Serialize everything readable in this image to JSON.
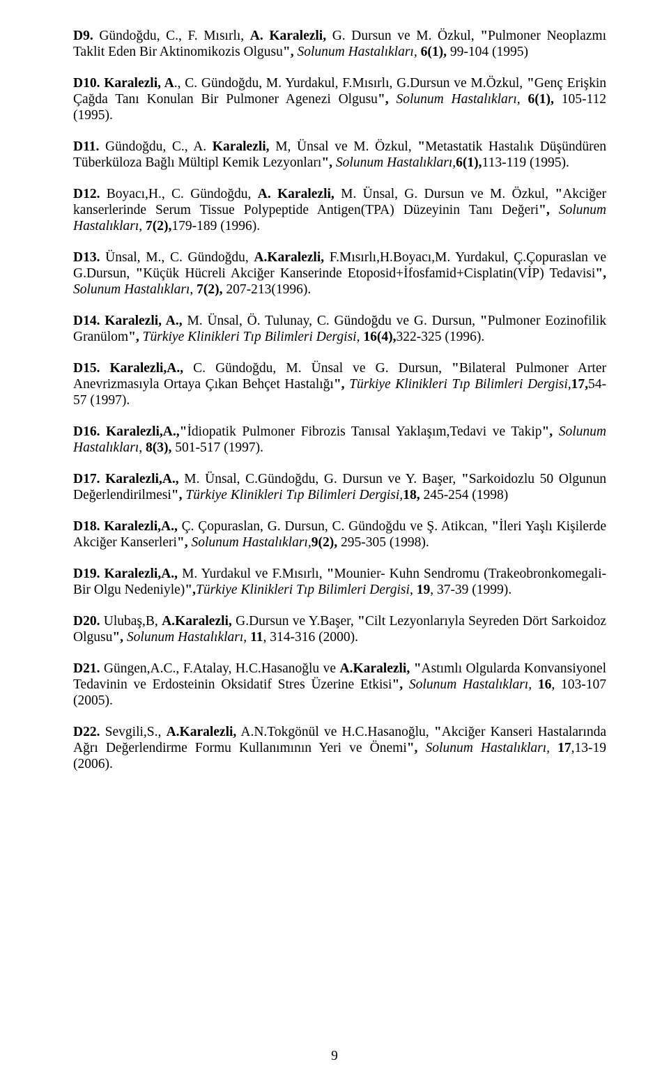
{
  "pageNumber": "9",
  "entries": [
    {
      "parts": [
        {
          "t": "D9.",
          "b": true
        },
        {
          "t": " Gündoğdu, C., F. Mısırlı, "
        },
        {
          "t": "A. Karalezli,",
          "b": true
        },
        {
          "t": " G. Dursun ve M. Özkul, "
        },
        {
          "t": "\"",
          "b": true
        },
        {
          "t": "Pulmoner Neoplazmı Taklit Eden Bir Aktinomikozis Olgusu"
        },
        {
          "t": "\",",
          "b": true
        },
        {
          "t": " "
        },
        {
          "t": "Solunum Hastalıkları,",
          "i": true
        },
        {
          "t": " "
        },
        {
          "t": "6(1),",
          "b": true
        },
        {
          "t": " 99-104 (1995)"
        }
      ]
    },
    {
      "parts": [
        {
          "t": "D10.",
          "b": true
        },
        {
          "t": " "
        },
        {
          "t": "Karalezli, A",
          "b": true
        },
        {
          "t": "., C. Gündoğdu, M. Yurdakul, F.Mısırlı, G.Dursun ve M.Özkul, "
        },
        {
          "t": "\"",
          "b": true
        },
        {
          "t": "Genç Erişkin Çağda Tanı Konulan Bir Pulmoner Agenezi Olgusu"
        },
        {
          "t": "\",",
          "b": true
        },
        {
          "t": " "
        },
        {
          "t": "Solunum Hastalıkları,",
          "i": true
        },
        {
          "t": " "
        },
        {
          "t": "6(1),",
          "b": true
        },
        {
          "t": " 105-112 (1995)."
        }
      ]
    },
    {
      "parts": [
        {
          "t": "D11.",
          "b": true
        },
        {
          "t": " Gündoğdu, C., A. "
        },
        {
          "t": "Karalezli,",
          "b": true
        },
        {
          "t": " M, Ünsal ve M. Özkul, "
        },
        {
          "t": "  \"",
          "b": true
        },
        {
          "t": "Metastatik Hastalık Düşündüren Tüberküloza Bağlı Mültipl Kemik Lezyonları"
        },
        {
          "t": "\",",
          "b": true
        },
        {
          "t": " "
        },
        {
          "t": "Solunum Hastalıkları,",
          "i": true
        },
        {
          "t": "6(1),",
          "b": true
        },
        {
          "t": "113-119 (1995)."
        }
      ]
    },
    {
      "parts": [
        {
          "t": "D12.",
          "b": true
        },
        {
          "t": " Boyacı,H., C. Gündoğdu, "
        },
        {
          "t": "A. Karalezli,",
          "b": true
        },
        {
          "t": " M. Ünsal, G. Dursun ve M. Özkul, "
        },
        {
          "t": "\"",
          "b": true
        },
        {
          "t": "Akciğer kanserlerinde Serum Tissue Polypeptide Antigen(TPA) Düzeyinin Tanı Değeri"
        },
        {
          "t": "\",",
          "b": true
        },
        {
          "t": " "
        },
        {
          "t": " Solunum Hastalıkları,",
          "i": true
        },
        {
          "t": " "
        },
        {
          "t": "7(2),",
          "b": true
        },
        {
          "t": "179-189 (1996)."
        }
      ]
    },
    {
      "parts": [
        {
          "t": "D13.",
          "b": true
        },
        {
          "t": " Ünsal, M., C. Gündoğdu, "
        },
        {
          "t": "A.Karalezli,",
          "b": true
        },
        {
          "t": " F.Mısırlı,H.Boyacı,M. Yurdakul, Ç.Çopuraslan ve G.Dursun, "
        },
        {
          "t": "\"",
          "b": true
        },
        {
          "t": "Küçük Hücreli Akciğer Kanserinde Etoposid+İfosfamid+Cisplatin(VİP) Tedavisi"
        },
        {
          "t": "\",",
          "b": true
        },
        {
          "t": " "
        },
        {
          "t": "Solunum Hastalıkları",
          "i": true
        },
        {
          "t": ", "
        },
        {
          "t": "7(2),",
          "b": true
        },
        {
          "t": " 207-213(1996)."
        }
      ]
    },
    {
      "parts": [
        {
          "t": "D14. Karalezli, A.,",
          "b": true
        },
        {
          "t": " M. Ünsal, Ö. Tulunay, C. Gündoğdu ve G. Dursun, "
        },
        {
          "t": "\"",
          "b": true
        },
        {
          "t": "Pulmoner Eozinofilik Granülom"
        },
        {
          "t": "\",",
          "b": true
        },
        {
          "t": " "
        },
        {
          "t": "Türkiye Klinikleri Tıp Bilimleri Dergisi,",
          "i": true
        },
        {
          "t": " "
        },
        {
          "t": "16(4),",
          "b": true
        },
        {
          "t": "322-325 (1996)."
        }
      ]
    },
    {
      "parts": [
        {
          "t": "D15. Karalezli,A.,",
          "b": true
        },
        {
          "t": " C. Gündoğdu, M. Ünsal ve G. Dursun, "
        },
        {
          "t": "\"",
          "b": true
        },
        {
          "t": "Bilateral Pulmoner Arter Anevrizmasıyla Ortaya Çıkan Behçet Hastalığı"
        },
        {
          "t": "\",",
          "b": true
        },
        {
          "t": " "
        },
        {
          "t": "Türkiye Klinikleri Tıp Bilimleri Dergisi,",
          "i": true
        },
        {
          "t": "17,",
          "b": true
        },
        {
          "t": "54-57 (1997)."
        }
      ]
    },
    {
      "parts": [
        {
          "t": "D16. Karalezli,A.,\"",
          "b": true
        },
        {
          "t": "İdiopatik Pulmoner Fibrozis Tanısal Yaklaşım,Tedavi ve Takip"
        },
        {
          "t": "\",",
          "b": true
        },
        {
          "t": " "
        },
        {
          "t": "Solunum Hastalıkları,",
          "i": true
        },
        {
          "t": " "
        },
        {
          "t": "8(3),",
          "b": true
        },
        {
          "t": " 501-517 (1997)."
        }
      ]
    },
    {
      "parts": [
        {
          "t": "D17. Karalezli,A.,",
          "b": true
        },
        {
          "t": " M. Ünsal, C.Gündoğdu, G. Dursun ve Y. Başer, "
        },
        {
          "t": "\"",
          "b": true
        },
        {
          "t": "Sarkoidozlu 50 Olgunun Değerlendirilmesi"
        },
        {
          "t": "\",",
          "b": true
        },
        {
          "t": " "
        },
        {
          "t": "Türkiye Klinikleri Tıp Bilimleri Dergisi,",
          "i": true
        },
        {
          "t": "18,",
          "b": true
        },
        {
          "t": " 245-254 (1998)"
        }
      ]
    },
    {
      "parts": [
        {
          "t": "D18. Karalezli,A.,",
          "b": true
        },
        {
          "t": " Ç. Çopuraslan, G. Dursun, C. Gündoğdu ve Ş. Atikcan, "
        },
        {
          "t": "\"",
          "b": true
        },
        {
          "t": "İleri Yaşlı Kişilerde Akciğer Kanserleri"
        },
        {
          "t": "\",",
          "b": true
        },
        {
          "t": " "
        },
        {
          "t": "Solunum Hastalıkları,",
          "i": true
        },
        {
          "t": "9(2),",
          "b": true
        },
        {
          "t": " 295-305 (1998)."
        }
      ]
    },
    {
      "parts": [
        {
          "t": "D19. Karalezli,A.,",
          "b": true
        },
        {
          "t": " M. Yurdakul ve F.Mısırlı, "
        },
        {
          "t": "\"",
          "b": true
        },
        {
          "t": "Mounier- Kuhn Sendromu (Trakeobronkomegali-Bir Olgu Nedeniyle)"
        },
        {
          "t": "\",",
          "b": true
        },
        {
          "t": "Türkiye Klinikleri Tıp Bilimleri Dergisi",
          "i": true
        },
        {
          "t": ", "
        },
        {
          "t": "19",
          "b": true
        },
        {
          "t": ", 37-39 (1999)."
        }
      ]
    },
    {
      "parts": [
        {
          "t": "D20.",
          "b": true
        },
        {
          "t": " Ulubaş,B, "
        },
        {
          "t": "A.Karalezli,",
          "b": true
        },
        {
          "t": " G.Dursun ve Y.Başer, "
        },
        {
          "t": "\"",
          "b": true
        },
        {
          "t": "Cilt Lezyonlarıyla Seyreden Dört Sarkoidoz Olgusu"
        },
        {
          "t": "\",",
          "b": true
        },
        {
          "t": " "
        },
        {
          "t": "Solunum Hastalıkları,",
          "i": true
        },
        {
          "t": " "
        },
        {
          "t": "11",
          "b": true
        },
        {
          "t": ", 314-316 (2000)."
        }
      ]
    },
    {
      "parts": [
        {
          "t": "D21.",
          "b": true
        },
        {
          "t": " Güngen,A.C., F.Atalay, H.C.Hasanoğlu ve "
        },
        {
          "t": "A.Karalezli,",
          "b": true
        },
        {
          "t": " "
        },
        {
          "t": "\"",
          "b": true
        },
        {
          "t": "Astımlı Olgularda Konvansiyonel Tedavinin ve Erdosteinin Oksidatif Stres Üzerine Etkisi"
        },
        {
          "t": "\",",
          "b": true
        },
        {
          "t": " "
        },
        {
          "t": "Solunum Hastalıkları,",
          "i": true
        },
        {
          "t": " "
        },
        {
          "t": "16",
          "b": true
        },
        {
          "t": ", 103-107 (2005)."
        }
      ]
    },
    {
      "parts": [
        {
          "t": "D22.",
          "b": true
        },
        {
          "t": " Sevgili,S., "
        },
        {
          "t": "A.Karalezli,",
          "b": true
        },
        {
          "t": " A.N.Tokgönül ve H.C.Hasanoğlu, "
        },
        {
          "t": "\"",
          "b": true
        },
        {
          "t": "Akciğer Kanseri Hastalarında Ağrı Değerlendirme Formu Kullanımının Yeri ve Önemi"
        },
        {
          "t": "\",",
          "b": true
        },
        {
          "t": " "
        },
        {
          "t": "Solunum Hastalıkları,",
          "i": true
        },
        {
          "t": " "
        },
        {
          "t": "17",
          "b": true
        },
        {
          "t": ",13-19 (2006)."
        }
      ]
    }
  ]
}
